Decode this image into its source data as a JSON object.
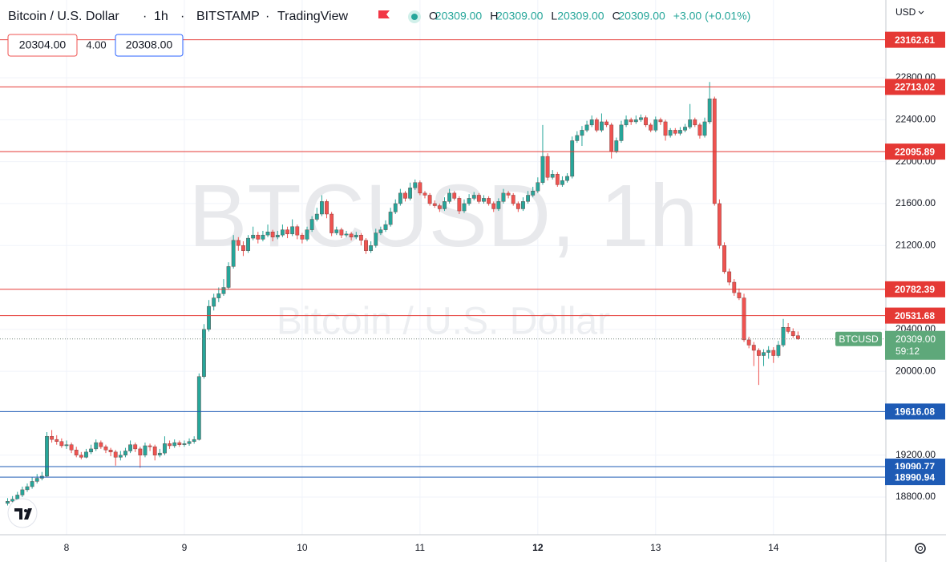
{
  "chart_data": {
    "type": "candlestick",
    "title": "Bitcoin / U.S. Dollar",
    "interval": "1h",
    "exchange": "BITSTAMP",
    "source": "TradingView",
    "legend_values": [
      {
        "key": "O",
        "value": "20309.00"
      },
      {
        "key": "H",
        "value": "20309.00"
      },
      {
        "key": "L",
        "value": "20309.00"
      },
      {
        "key": "C",
        "value": "20309.00"
      }
    ],
    "change": "+3.00 (+0.01%)",
    "bid": "20304.00",
    "spread": "4.00",
    "ask": "20308.00",
    "currency": "USD",
    "watermark": "BTCUSD, 1h",
    "up_color": "#26a69a",
    "down_color": "#ef5350",
    "x": [
      -12,
      -11,
      -10,
      -9,
      -8,
      -7,
      -6,
      -5,
      -4,
      -3,
      -2,
      -1,
      0,
      1,
      2,
      3,
      4,
      5,
      6,
      7,
      8,
      9,
      10,
      11,
      12,
      13,
      14,
      15,
      16,
      17,
      18,
      19,
      20,
      21,
      22,
      23,
      24,
      25,
      26,
      27,
      28,
      29,
      30,
      31,
      32,
      33,
      34,
      35,
      36,
      37,
      38,
      39,
      40,
      41,
      42,
      43,
      44,
      45,
      46,
      47,
      48,
      49,
      50,
      51,
      52,
      53,
      54,
      55,
      56,
      57,
      58,
      59,
      60,
      61,
      62,
      63,
      64,
      65,
      66,
      67,
      68,
      69,
      70,
      71,
      72,
      73,
      74,
      75,
      76,
      77,
      78,
      79,
      80,
      81,
      82,
      83,
      84,
      85,
      86,
      87,
      88,
      89,
      90,
      91,
      92,
      93,
      94,
      95,
      96,
      97,
      98,
      99,
      100,
      101,
      102,
      103,
      104,
      105,
      106,
      107,
      108,
      109,
      110,
      111,
      112,
      113,
      114,
      115,
      116,
      117,
      118,
      119,
      120,
      121,
      122,
      123,
      124,
      125,
      126,
      127,
      128,
      129,
      130,
      131,
      132,
      133,
      134,
      135,
      136,
      137,
      138,
      139,
      140,
      141,
      142,
      143,
      144,
      145,
      146,
      147,
      148,
      149
    ],
    "candles": [
      [
        18740,
        18790,
        18720,
        18760
      ],
      [
        18760,
        18810,
        18740,
        18780
      ],
      [
        18780,
        18850,
        18760,
        18820
      ],
      [
        18820,
        18900,
        18800,
        18870
      ],
      [
        18870,
        18930,
        18850,
        18900
      ],
      [
        18900,
        18990,
        18880,
        18950
      ],
      [
        18950,
        19020,
        18930,
        18980
      ],
      [
        18980,
        19040,
        18960,
        19000
      ],
      [
        19000,
        19420,
        18990,
        19380
      ],
      [
        19380,
        19440,
        19320,
        19350
      ],
      [
        19350,
        19390,
        19300,
        19330
      ],
      [
        19330,
        19360,
        19270,
        19290
      ],
      [
        19290,
        19340,
        19260,
        19300
      ],
      [
        19300,
        19320,
        19220,
        19250
      ],
      [
        19250,
        19280,
        19180,
        19200
      ],
      [
        19200,
        19230,
        19160,
        19180
      ],
      [
        19180,
        19260,
        19170,
        19230
      ],
      [
        19230,
        19300,
        19210,
        19260
      ],
      [
        19260,
        19350,
        19240,
        19320
      ],
      [
        19320,
        19340,
        19260,
        19280
      ],
      [
        19280,
        19300,
        19220,
        19250
      ],
      [
        19250,
        19270,
        19190,
        19230
      ],
      [
        19230,
        19250,
        19100,
        19180
      ],
      [
        19180,
        19240,
        19150,
        19200
      ],
      [
        19200,
        19270,
        19180,
        19240
      ],
      [
        19240,
        19340,
        19220,
        19300
      ],
      [
        19300,
        19320,
        19230,
        19260
      ],
      [
        19260,
        19280,
        19080,
        19200
      ],
      [
        19200,
        19320,
        19180,
        19290
      ],
      [
        19290,
        19310,
        19240,
        19280
      ],
      [
        19280,
        19300,
        19150,
        19200
      ],
      [
        19200,
        19260,
        19180,
        19220
      ],
      [
        19220,
        19380,
        19200,
        19310
      ],
      [
        19310,
        19340,
        19260,
        19290
      ],
      [
        19290,
        19350,
        19270,
        19320
      ],
      [
        19320,
        19340,
        19280,
        19300
      ],
      [
        19300,
        19340,
        19280,
        19310
      ],
      [
        19310,
        19360,
        19290,
        19330
      ],
      [
        19330,
        19380,
        19310,
        19350
      ],
      [
        19350,
        19980,
        19340,
        19950
      ],
      [
        19950,
        20450,
        19930,
        20400
      ],
      [
        20400,
        20680,
        20380,
        20620
      ],
      [
        20620,
        20740,
        20580,
        20700
      ],
      [
        20700,
        20800,
        20660,
        20740
      ],
      [
        20740,
        20880,
        20720,
        20800
      ],
      [
        20800,
        21040,
        20780,
        21000
      ],
      [
        21000,
        21300,
        20980,
        21250
      ],
      [
        21250,
        21280,
        21150,
        21200
      ],
      [
        21200,
        21240,
        21100,
        21150
      ],
      [
        21150,
        21300,
        21130,
        21270
      ],
      [
        21270,
        21380,
        21250,
        21300
      ],
      [
        21300,
        21330,
        21220,
        21260
      ],
      [
        21260,
        21340,
        21240,
        21300
      ],
      [
        21300,
        21400,
        21280,
        21330
      ],
      [
        21330,
        21350,
        21240,
        21280
      ],
      [
        21280,
        21340,
        21260,
        21300
      ],
      [
        21300,
        21400,
        21280,
        21350
      ],
      [
        21350,
        21380,
        21270,
        21310
      ],
      [
        21310,
        21450,
        21290,
        21380
      ],
      [
        21380,
        21400,
        21260,
        21300
      ],
      [
        21300,
        21320,
        21220,
        21260
      ],
      [
        21260,
        21380,
        21240,
        21350
      ],
      [
        21350,
        21480,
        21330,
        21450
      ],
      [
        21450,
        21560,
        21430,
        21500
      ],
      [
        21500,
        21680,
        21480,
        21620
      ],
      [
        21620,
        21640,
        21460,
        21500
      ],
      [
        21500,
        21520,
        21290,
        21320
      ],
      [
        21320,
        21380,
        21300,
        21350
      ],
      [
        21350,
        21370,
        21270,
        21300
      ],
      [
        21300,
        21340,
        21280,
        21310
      ],
      [
        21310,
        21330,
        21250,
        21280
      ],
      [
        21280,
        21330,
        21260,
        21300
      ],
      [
        21300,
        21320,
        21200,
        21250
      ],
      [
        21250,
        21270,
        21120,
        21150
      ],
      [
        21150,
        21240,
        21130,
        21200
      ],
      [
        21200,
        21360,
        21180,
        21320
      ],
      [
        21320,
        21380,
        21300,
        21350
      ],
      [
        21350,
        21440,
        21330,
        21400
      ],
      [
        21400,
        21560,
        21380,
        21520
      ],
      [
        21520,
        21640,
        21500,
        21600
      ],
      [
        21600,
        21740,
        21580,
        21700
      ],
      [
        21700,
        21720,
        21620,
        21650
      ],
      [
        21650,
        21800,
        21630,
        21750
      ],
      [
        21750,
        21830,
        21730,
        21800
      ],
      [
        21800,
        21820,
        21680,
        21700
      ],
      [
        21700,
        21720,
        21650,
        21680
      ],
      [
        21680,
        21700,
        21580,
        21600
      ],
      [
        21600,
        21630,
        21560,
        21580
      ],
      [
        21580,
        21600,
        21520,
        21550
      ],
      [
        21550,
        21660,
        21530,
        21620
      ],
      [
        21620,
        21740,
        21600,
        21700
      ],
      [
        21700,
        21720,
        21630,
        21650
      ],
      [
        21650,
        21670,
        21500,
        21530
      ],
      [
        21530,
        21640,
        21510,
        21600
      ],
      [
        21600,
        21690,
        21580,
        21650
      ],
      [
        21650,
        21710,
        21630,
        21680
      ],
      [
        21680,
        21700,
        21600,
        21620
      ],
      [
        21620,
        21680,
        21600,
        21650
      ],
      [
        21650,
        21670,
        21580,
        21600
      ],
      [
        21600,
        21620,
        21520,
        21550
      ],
      [
        21550,
        21650,
        21530,
        21620
      ],
      [
        21620,
        21740,
        21600,
        21700
      ],
      [
        21700,
        21720,
        21650,
        21680
      ],
      [
        21680,
        21700,
        21580,
        21600
      ],
      [
        21600,
        21620,
        21520,
        21550
      ],
      [
        21550,
        21660,
        21530,
        21620
      ],
      [
        21620,
        21720,
        21600,
        21680
      ],
      [
        21680,
        21760,
        21660,
        21720
      ],
      [
        21720,
        21850,
        21700,
        21800
      ],
      [
        21800,
        22350,
        21780,
        22050
      ],
      [
        22050,
        22080,
        21820,
        21850
      ],
      [
        21850,
        21920,
        21830,
        21880
      ],
      [
        21880,
        21900,
        21760,
        21780
      ],
      [
        21780,
        21860,
        21760,
        21820
      ],
      [
        21820,
        21890,
        21800,
        21860
      ],
      [
        21860,
        22240,
        21840,
        22200
      ],
      [
        22200,
        22290,
        22180,
        22250
      ],
      [
        22250,
        22340,
        22150,
        22300
      ],
      [
        22300,
        22390,
        22280,
        22350
      ],
      [
        22350,
        22440,
        22330,
        22400
      ],
      [
        22400,
        22420,
        22280,
        22300
      ],
      [
        22300,
        22460,
        22280,
        22380
      ],
      [
        22380,
        22400,
        22330,
        22350
      ],
      [
        22350,
        22370,
        22030,
        22100
      ],
      [
        22100,
        22230,
        22080,
        22200
      ],
      [
        22200,
        22390,
        22180,
        22350
      ],
      [
        22350,
        22440,
        22330,
        22400
      ],
      [
        22400,
        22420,
        22350,
        22380
      ],
      [
        22380,
        22440,
        22360,
        22400
      ],
      [
        22400,
        22450,
        22380,
        22420
      ],
      [
        22420,
        22440,
        22330,
        22350
      ],
      [
        22350,
        22370,
        22280,
        22300
      ],
      [
        22300,
        22430,
        22280,
        22400
      ],
      [
        22400,
        22420,
        22350,
        22380
      ],
      [
        22380,
        22400,
        22200,
        22250
      ],
      [
        22250,
        22320,
        22230,
        22300
      ],
      [
        22300,
        22320,
        22250,
        22270
      ],
      [
        22270,
        22330,
        22250,
        22300
      ],
      [
        22300,
        22360,
        22280,
        22330
      ],
      [
        22330,
        22550,
        22310,
        22400
      ],
      [
        22400,
        22420,
        22330,
        22350
      ],
      [
        22350,
        22370,
        22220,
        22250
      ],
      [
        22250,
        22420,
        22230,
        22380
      ],
      [
        22380,
        22760,
        22360,
        22600
      ],
      [
        22600,
        22620,
        21580,
        21600
      ],
      [
        21600,
        21640,
        21170,
        21200
      ],
      [
        21200,
        21230,
        20930,
        20950
      ],
      [
        20950,
        20980,
        20820,
        20850
      ],
      [
        20850,
        20880,
        20720,
        20750
      ],
      [
        20750,
        20790,
        20680,
        20700
      ],
      [
        20700,
        20740,
        20280,
        20300
      ],
      [
        20300,
        20330,
        20220,
        20250
      ],
      [
        20250,
        20280,
        20050,
        20200
      ],
      [
        20200,
        20220,
        19870,
        20150
      ],
      [
        20150,
        20210,
        20050,
        20180
      ],
      [
        20180,
        20240,
        20120,
        20200
      ],
      [
        20200,
        20230,
        20080,
        20150
      ],
      [
        20150,
        20290,
        20130,
        20250
      ],
      [
        20250,
        20500,
        20230,
        20420
      ],
      [
        20420,
        20460,
        20360,
        20380
      ],
      [
        20380,
        20410,
        20320,
        20340
      ],
      [
        20340,
        20380,
        20300,
        20309
      ]
    ],
    "xlim": [
      -13.55,
      166.9
    ],
    "xticks": [
      {
        "value": 0,
        "label": "8"
      },
      {
        "value": 24,
        "label": "9"
      },
      {
        "value": 48,
        "label": "10"
      },
      {
        "value": 72,
        "label": "11"
      },
      {
        "value": 96,
        "label": "12"
      },
      {
        "value": 120,
        "label": "13"
      },
      {
        "value": 144,
        "label": "14"
      }
    ],
    "ylim": [
      18441,
      23542
    ],
    "yticks": [
      {
        "value": 18800,
        "label": "18800.00"
      },
      {
        "value": 19200,
        "label": "19200.00"
      },
      {
        "value": 20000,
        "label": "20000.00"
      },
      {
        "value": 20400,
        "label": "20400.00"
      },
      {
        "value": 21200,
        "label": "21200.00"
      },
      {
        "value": 21600,
        "label": "21600.00"
      },
      {
        "value": 22000,
        "label": "22000.00"
      },
      {
        "value": 22400,
        "label": "22400.00"
      },
      {
        "value": 22800,
        "label": "22800.00"
      }
    ],
    "grid": true,
    "levels": [
      {
        "value": 23162.61,
        "color": "#e53935"
      },
      {
        "value": 22713.02,
        "color": "#e53935"
      },
      {
        "value": 22095.89,
        "color": "#e53935"
      },
      {
        "value": 20782.39,
        "color": "#e53935"
      },
      {
        "value": 20531.68,
        "color": "#e53935"
      },
      {
        "value": 19616.08,
        "color": "#1e5bb5"
      },
      {
        "value": 19090.77,
        "color": "#1e5bb5"
      },
      {
        "value": 18990.94,
        "color": "#1e5bb5"
      }
    ],
    "last": {
      "name": "BTCUSD",
      "price": {
        "value": 20309,
        "label": "20309.00"
      },
      "countdown": "59:12",
      "color": "#5ea87a"
    }
  }
}
